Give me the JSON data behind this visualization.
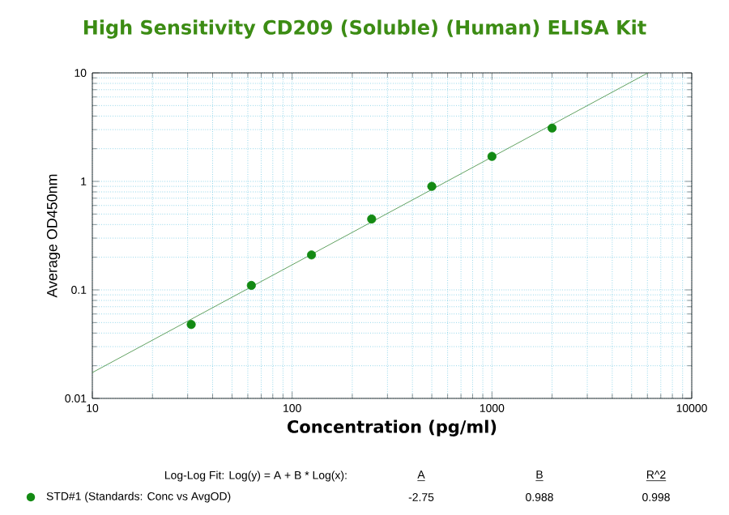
{
  "chart_data": {
    "type": "scatter",
    "title": "High Sensitivity CD209 (Soluble) (Human) ELISA Kit",
    "xlabel": "Concentration (pg/ml)",
    "ylabel": "Average OD450nm",
    "log": "xy",
    "xlim": [
      10,
      10000
    ],
    "ylim": [
      0.01,
      10
    ],
    "xticks": [
      10,
      100,
      1000,
      10000
    ],
    "yticks": [
      0.01,
      0.1,
      1,
      10
    ],
    "grid": true,
    "legend": "bottom",
    "series": [
      {
        "name": "STD#1 (Standards: Conc vs AvgOD)",
        "marker": "circle",
        "color": "#138a13",
        "x": [
          31.25,
          62.5,
          125,
          250,
          500,
          1000,
          2000
        ],
        "values": [
          0.048,
          0.11,
          0.21,
          0.45,
          0.9,
          1.7,
          3.1
        ]
      },
      {
        "type": "line",
        "marker": "none",
        "color": "#3a8a3a",
        "x": [
          10,
          6040
        ],
        "values": [
          0.0173,
          10
        ]
      }
    ],
    "annotations": [
      "Log-Log Fit: Log(y) = A + B * Log(x):",
      "A",
      "B",
      "R^2",
      "-2.75",
      "0.988",
      "0.998"
    ]
  }
}
